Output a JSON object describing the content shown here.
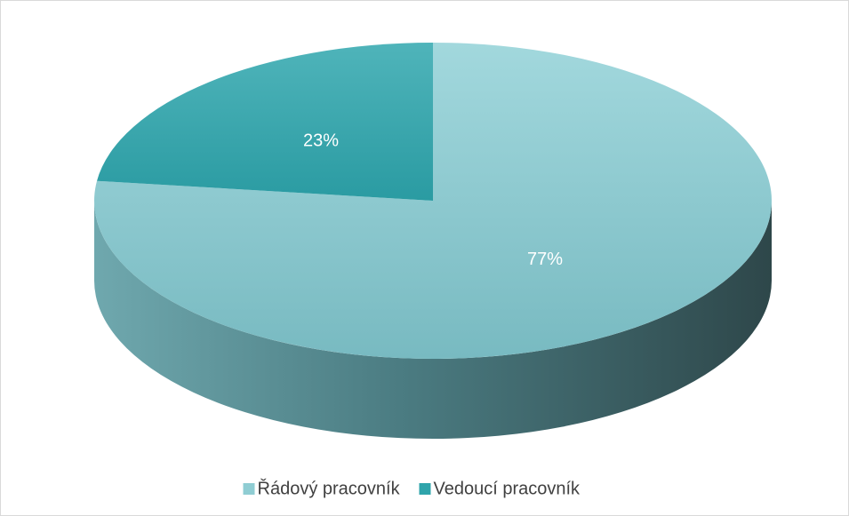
{
  "chart_data": {
    "type": "pie",
    "categories": [
      "Řádový pracovník",
      "Vedoucí pracovník"
    ],
    "values": [
      77,
      23
    ],
    "value_labels": [
      "77%",
      "23%"
    ],
    "colors": [
      "#8fcdd3",
      "#2fa4ab"
    ],
    "legend": "bottom"
  }
}
